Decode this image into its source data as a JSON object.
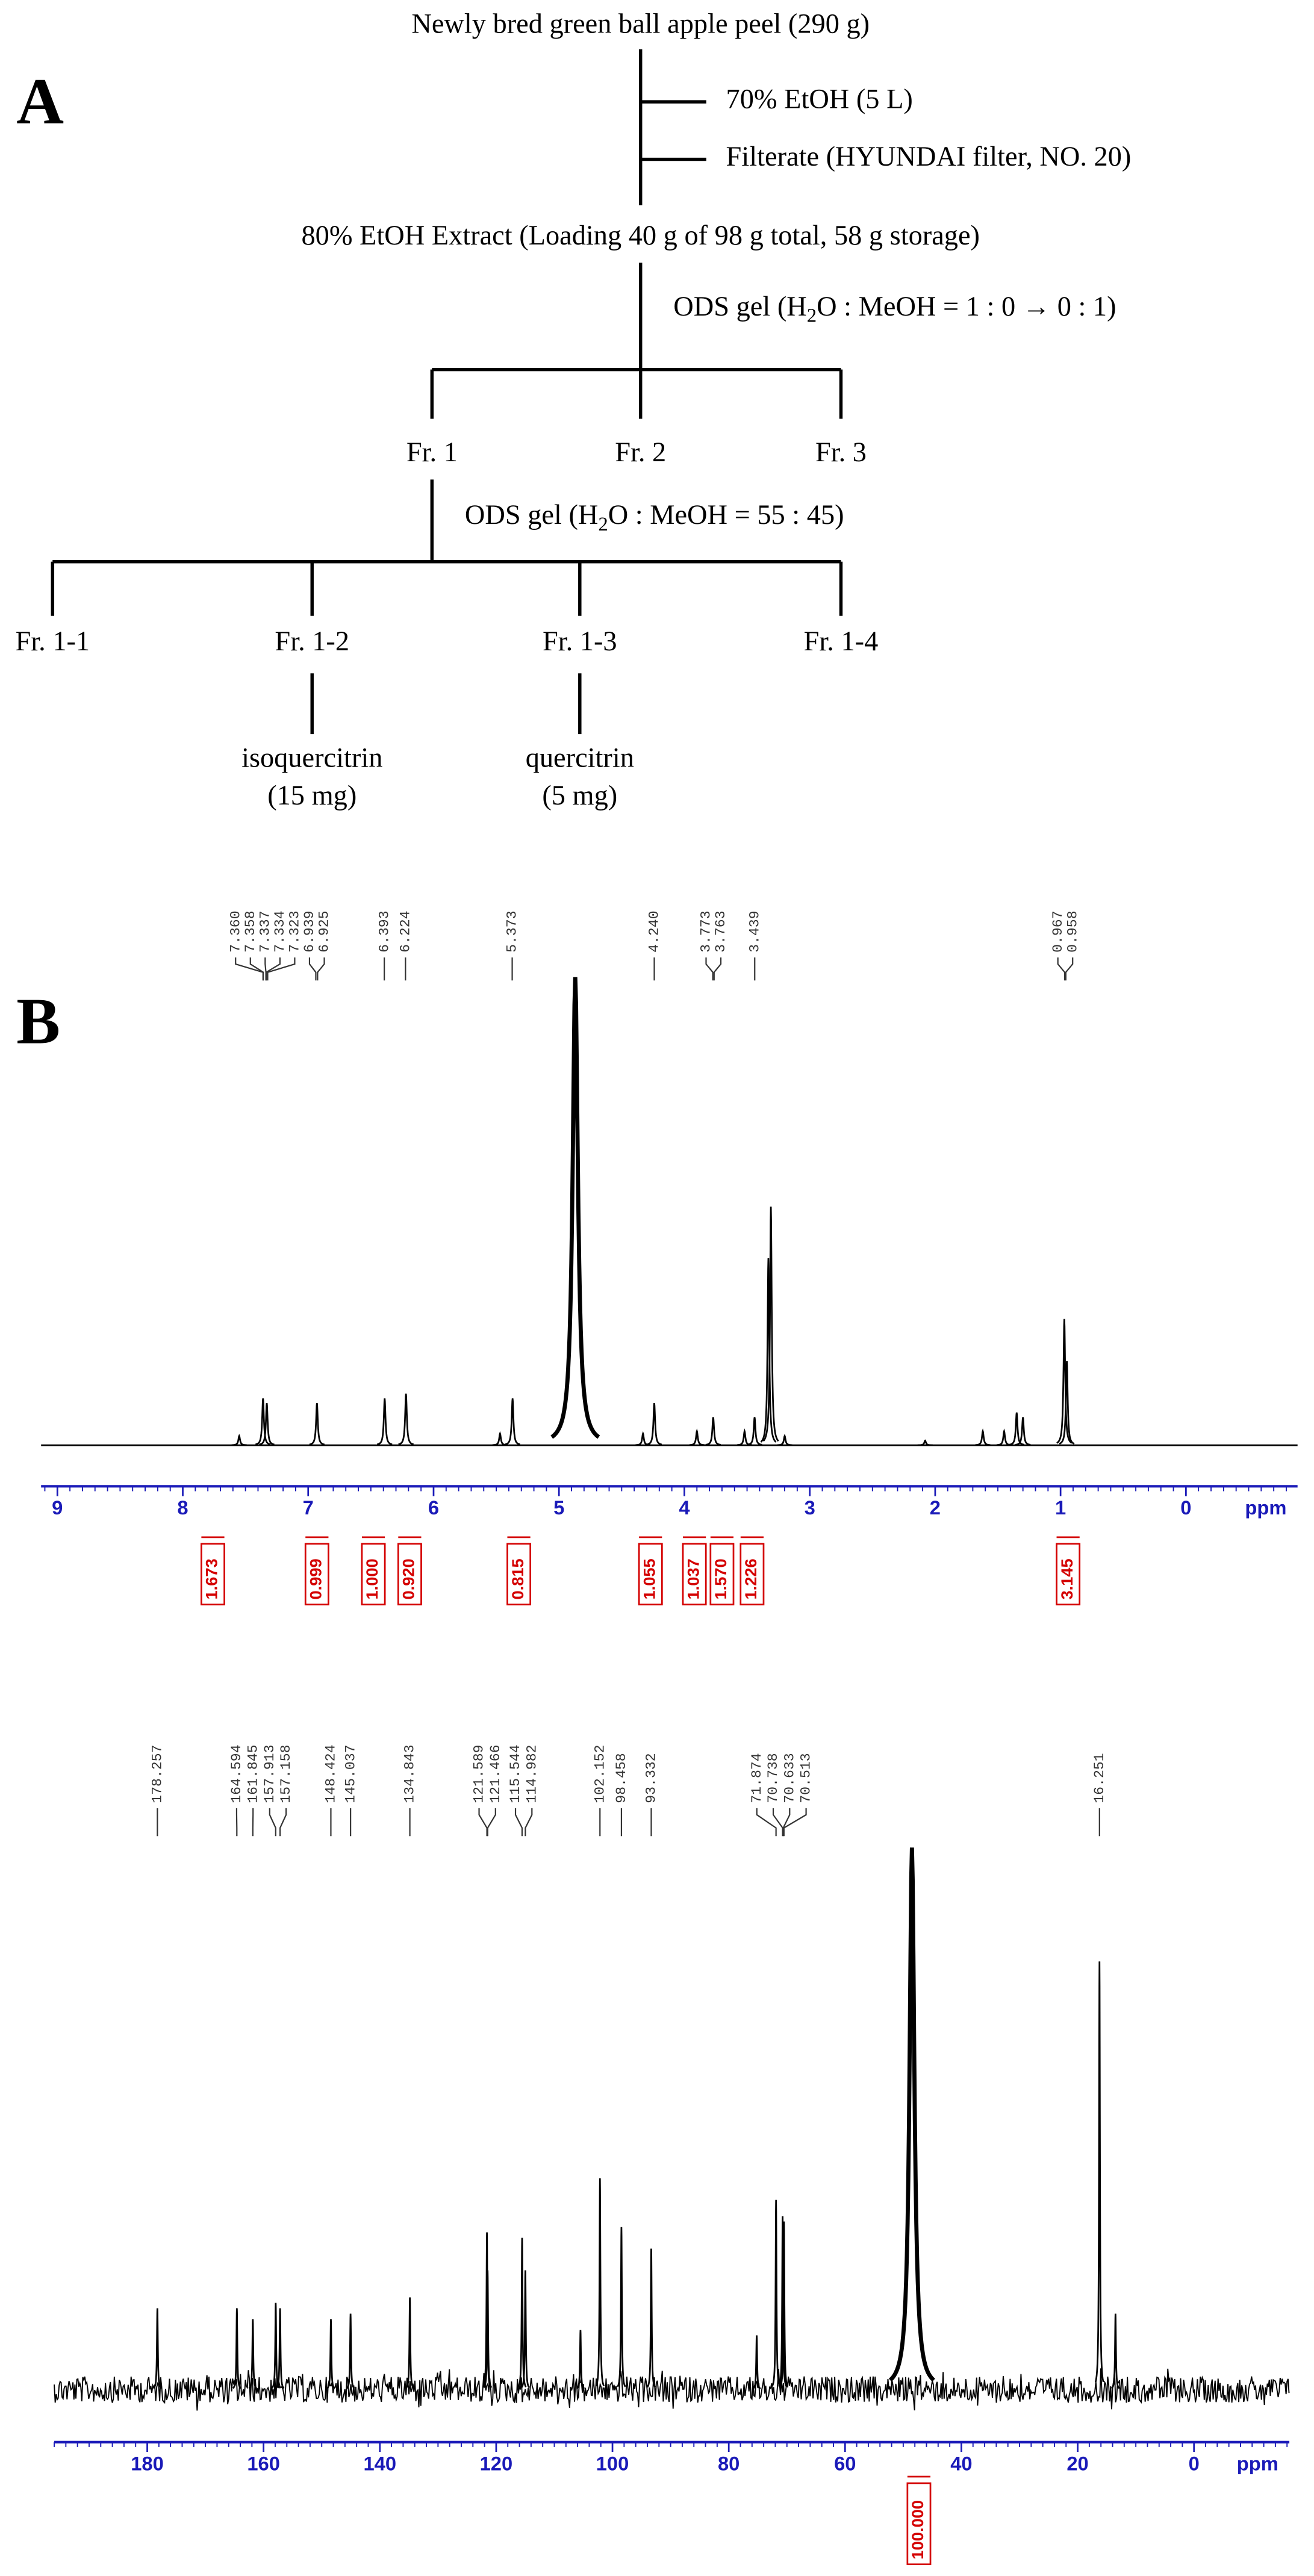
{
  "panel_labels": [
    "A",
    "B"
  ],
  "flowchart": {
    "start": "Newly bred green ball apple peel (290 g)",
    "step1": "70% EtOH (5 L)",
    "step2": "Filterate (HYUNDAI filter, NO. 20)",
    "extract": "80% EtOH Extract (Loading 40 g of 98 g total, 58 g storage)",
    "column1": [
      "ODS gel (H",
      "2",
      "O : MeOH = 1 : 0 → 0 : 1)"
    ],
    "fractions": [
      "Fr. 1",
      "Fr. 2",
      "Fr. 3"
    ],
    "column2": [
      "ODS gel (H",
      "2",
      "O : MeOH = 55 : 45)"
    ],
    "subfractions": [
      "Fr. 1-1",
      "Fr. 1-2",
      "Fr. 1-3",
      "Fr. 1-4"
    ],
    "compounds": [
      {
        "name": "isoquercitrin",
        "amount": "(15 mg)"
      },
      {
        "name": "quercitrin",
        "amount": "(5 mg)"
      }
    ]
  },
  "spectra": [
    {
      "xlim": [
        9.13,
        -0.89
      ],
      "xticks": [
        9,
        8,
        7,
        6,
        5,
        4,
        3,
        2,
        1,
        0
      ],
      "xlabel": "ppm",
      "peak_labels": [
        "7.360",
        "7.358",
        "7.337",
        "7.334",
        "7.323",
        "6.939",
        "6.925",
        "6.393",
        "6.224",
        "5.373",
        "4.240",
        "3.773",
        "3.763",
        "3.439",
        "0.967",
        "0.958"
      ],
      "integrals": [
        {
          "at": 7.76,
          "label": "1.673"
        },
        {
          "at": 6.93,
          "label": "0.999"
        },
        {
          "at": 6.48,
          "label": "1.000"
        },
        {
          "at": 6.19,
          "label": "0.920"
        },
        {
          "at": 5.32,
          "label": "0.815"
        },
        {
          "at": 4.27,
          "label": "1.055"
        },
        {
          "at": 3.92,
          "label": "1.037"
        },
        {
          "at": 3.7,
          "label": "1.570"
        },
        {
          "at": 3.46,
          "label": "1.226"
        },
        {
          "at": 0.94,
          "label": "3.145"
        }
      ],
      "signals": [
        {
          "ppm": 7.55,
          "intensity": 2
        },
        {
          "ppm": 7.36,
          "intensity": 10
        },
        {
          "ppm": 7.33,
          "intensity": 9
        },
        {
          "ppm": 6.93,
          "intensity": 9
        },
        {
          "ppm": 6.39,
          "intensity": 10
        },
        {
          "ppm": 6.22,
          "intensity": 11
        },
        {
          "ppm": 5.47,
          "intensity": 2.5
        },
        {
          "ppm": 5.37,
          "intensity": 10
        },
        {
          "ppm": 4.87,
          "intensity": 100
        },
        {
          "ppm": 4.33,
          "intensity": 2.5
        },
        {
          "ppm": 4.24,
          "intensity": 9
        },
        {
          "ppm": 3.9,
          "intensity": 3
        },
        {
          "ppm": 3.77,
          "intensity": 6
        },
        {
          "ppm": 3.52,
          "intensity": 3
        },
        {
          "ppm": 3.44,
          "intensity": 6
        },
        {
          "ppm": 3.33,
          "intensity": 40
        },
        {
          "ppm": 3.31,
          "intensity": 51
        },
        {
          "ppm": 3.2,
          "intensity": 2
        },
        {
          "ppm": 2.08,
          "intensity": 1
        },
        {
          "ppm": 1.62,
          "intensity": 3
        },
        {
          "ppm": 1.45,
          "intensity": 3
        },
        {
          "ppm": 1.35,
          "intensity": 7
        },
        {
          "ppm": 1.3,
          "intensity": 6
        },
        {
          "ppm": 0.97,
          "intensity": 27
        },
        {
          "ppm": 0.95,
          "intensity": 18
        }
      ]
    },
    {
      "xlim": [
        196,
        -16.4
      ],
      "xticks": [
        180,
        160,
        140,
        120,
        100,
        80,
        60,
        40,
        20,
        0
      ],
      "xlabel": "ppm",
      "peak_labels": [
        "178.257",
        "164.594",
        "161.845",
        "157.913",
        "157.158",
        "148.424",
        "145.037",
        "134.843",
        "121.589",
        "121.466",
        "115.544",
        "114.982",
        "102.152",
        "98.458",
        "93.332",
        "71.874",
        "70.738",
        "70.633",
        "70.513",
        "16.251"
      ],
      "integrals": [
        {
          "at": 47.3,
          "label": "100.000"
        }
      ],
      "signals": [
        {
          "ppm": 178.26,
          "intensity": 15
        },
        {
          "ppm": 164.59,
          "intensity": 15
        },
        {
          "ppm": 161.85,
          "intensity": 13
        },
        {
          "ppm": 157.91,
          "intensity": 16
        },
        {
          "ppm": 157.16,
          "intensity": 15
        },
        {
          "ppm": 148.42,
          "intensity": 13
        },
        {
          "ppm": 145.04,
          "intensity": 14
        },
        {
          "ppm": 134.84,
          "intensity": 17
        },
        {
          "ppm": 121.59,
          "intensity": 29
        },
        {
          "ppm": 121.47,
          "intensity": 22
        },
        {
          "ppm": 115.54,
          "intensity": 28
        },
        {
          "ppm": 114.98,
          "intensity": 22
        },
        {
          "ppm": 105.5,
          "intensity": 11
        },
        {
          "ppm": 102.15,
          "intensity": 39
        },
        {
          "ppm": 98.46,
          "intensity": 30
        },
        {
          "ppm": 93.33,
          "intensity": 26
        },
        {
          "ppm": 75.2,
          "intensity": 10
        },
        {
          "ppm": 71.87,
          "intensity": 35
        },
        {
          "ppm": 70.74,
          "intensity": 32
        },
        {
          "ppm": 70.51,
          "intensity": 31
        },
        {
          "ppm": 48.5,
          "intensity": 100
        },
        {
          "ppm": 16.25,
          "intensity": 79
        },
        {
          "ppm": 13.5,
          "intensity": 14
        }
      ]
    }
  ]
}
